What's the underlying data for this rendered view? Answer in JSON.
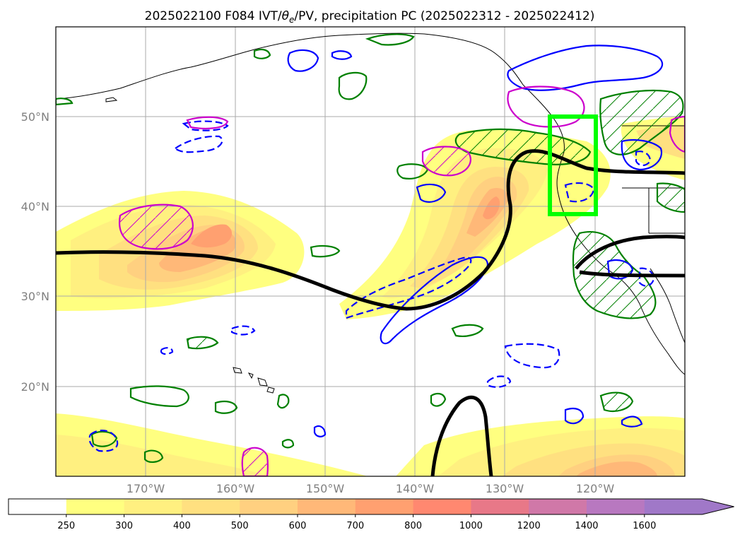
{
  "title_parts": {
    "prefix": "2025022100 F084 IVT/",
    "theta": "θ",
    "theta_sub": "e",
    "suffix": "/PV, precipitation PC (2025022312 - 2025022412)"
  },
  "map": {
    "lon_range": [
      -180,
      -110
    ],
    "lat_range": [
      10,
      60
    ],
    "lat_ticks": [
      {
        "value": 20,
        "label": "20°N"
      },
      {
        "value": 30,
        "label": "30°N"
      },
      {
        "value": 40,
        "label": "40°N"
      },
      {
        "value": 50,
        "label": "50°N"
      }
    ],
    "lon_ticks": [
      {
        "value": -170,
        "label": "170°W"
      },
      {
        "value": -160,
        "label": "160°W"
      },
      {
        "value": -150,
        "label": "150°W"
      },
      {
        "value": -140,
        "label": "140°W"
      },
      {
        "value": -130,
        "label": "130°W"
      },
      {
        "value": -120,
        "label": "120°W"
      }
    ],
    "gridlines": true,
    "highlight_box": {
      "lon": [
        -125,
        -120
      ],
      "lat": [
        39,
        50
      ],
      "color": "#00ff00"
    }
  },
  "colorbar": {
    "levels": [
      "250",
      "300",
      "400",
      "500",
      "600",
      "700",
      "800",
      "1000",
      "1200",
      "1400",
      "1600"
    ],
    "colors": [
      "#ffffff",
      "#ffff80",
      "#fff080",
      "#ffe080",
      "#ffd080",
      "#ffb878",
      "#ffa070",
      "#ff8870",
      "#e87888",
      "#d078a8",
      "#b878c0",
      "#a078c8"
    ],
    "extend": "max"
  },
  "colors": {
    "ivt_contour": "#000000",
    "theta_e_positive": "#0000ff",
    "theta_e_negative_dashed": "#0000ff",
    "pv": "#cc00cc",
    "precip": "#008000",
    "coastline": "#000000"
  }
}
